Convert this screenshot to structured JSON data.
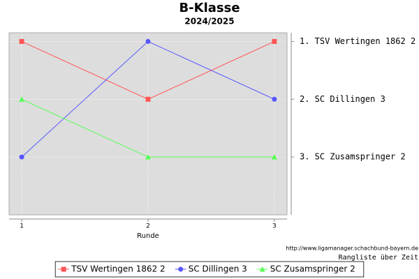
{
  "chart_data": {
    "type": "line",
    "title": "B-Klasse",
    "subtitle": "2024/2025",
    "x_label": "Runde",
    "source": "http://www.ligamanager.schachbund-bayern.de",
    "caption": "Rangliste über Zeit",
    "x": [
      1,
      2,
      3
    ],
    "xlim": [
      0.9,
      3.1
    ],
    "xticks": [
      1,
      2,
      3
    ],
    "ylim": [
      4,
      0.85
    ],
    "yticks": [
      {
        "value": 1,
        "label": "1. TSV Wertingen 1862 2"
      },
      {
        "value": 2,
        "label": "2. SC Dillingen 3"
      },
      {
        "value": 3,
        "label": "3. SC Zusamspringer 2"
      }
    ],
    "grid": true,
    "legend": "bottom",
    "series": [
      {
        "name": "TSV Wertingen 1862 2",
        "color": "#ff5555",
        "marker": "square",
        "values": [
          1,
          2,
          1
        ]
      },
      {
        "name": "SC Dillingen 3",
        "color": "#5555ff",
        "marker": "circle",
        "values": [
          3,
          1,
          2
        ]
      },
      {
        "name": "SC Zusamspringer 2",
        "color": "#55ff55",
        "marker": "triangle",
        "values": [
          2,
          3,
          3
        ]
      }
    ]
  }
}
